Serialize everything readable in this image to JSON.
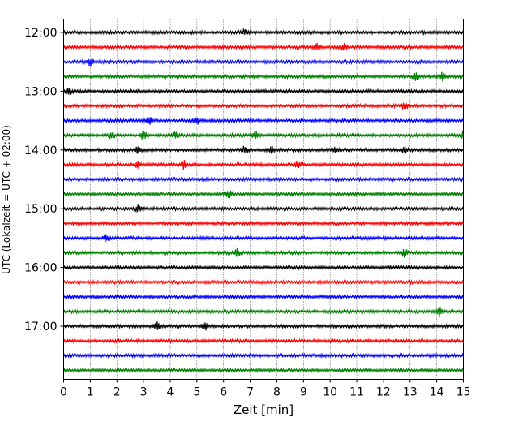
{
  "chart_data": {
    "type": "line",
    "title": "",
    "xlabel": "Zeit  [min]",
    "ylabel": "UTC (Lokalzeit = UTC + 02:00)",
    "xlim": [
      0,
      15
    ],
    "x_ticks": [
      0,
      1,
      2,
      3,
      4,
      5,
      6,
      7,
      8,
      9,
      10,
      11,
      12,
      13,
      14,
      15
    ],
    "y_tick_labels": [
      "12:00",
      "13:00",
      "14:00",
      "15:00",
      "16:00",
      "17:00"
    ],
    "grid": "vertical dotted",
    "trace_colors": [
      "#000000",
      "#ff0000",
      "#0000ff",
      "#008000"
    ],
    "traces": [
      {
        "start": "12:00",
        "color": "#000000",
        "events": [
          6.8
        ]
      },
      {
        "start": "12:15",
        "color": "#ff0000",
        "events": [
          9.5,
          10.5
        ]
      },
      {
        "start": "12:30",
        "color": "#0000ff",
        "events": [
          1.0
        ]
      },
      {
        "start": "12:45",
        "color": "#008000",
        "events": [
          13.2,
          14.2
        ]
      },
      {
        "start": "13:00",
        "color": "#000000",
        "events": [
          0.2
        ]
      },
      {
        "start": "13:15",
        "color": "#ff0000",
        "events": [
          12.8
        ]
      },
      {
        "start": "13:30",
        "color": "#0000ff",
        "events": [
          3.2,
          5.0
        ]
      },
      {
        "start": "13:45",
        "color": "#008000",
        "events": [
          1.8,
          3.0,
          4.2,
          7.2,
          15.0
        ]
      },
      {
        "start": "14:00",
        "color": "#000000",
        "events": [
          2.8,
          6.8,
          7.8,
          10.2,
          12.8
        ]
      },
      {
        "start": "14:15",
        "color": "#ff0000",
        "events": [
          2.8,
          4.5,
          8.8
        ]
      },
      {
        "start": "14:30",
        "color": "#0000ff",
        "events": []
      },
      {
        "start": "14:45",
        "color": "#008000",
        "events": [
          6.2
        ]
      },
      {
        "start": "15:00",
        "color": "#000000",
        "events": [
          2.8
        ]
      },
      {
        "start": "15:15",
        "color": "#ff0000",
        "events": []
      },
      {
        "start": "15:30",
        "color": "#0000ff",
        "events": [
          1.6
        ]
      },
      {
        "start": "15:45",
        "color": "#008000",
        "events": [
          6.5,
          12.8
        ]
      },
      {
        "start": "16:00",
        "color": "#000000",
        "events": []
      },
      {
        "start": "16:15",
        "color": "#ff0000",
        "events": []
      },
      {
        "start": "16:30",
        "color": "#0000ff",
        "events": []
      },
      {
        "start": "16:45",
        "color": "#008000",
        "events": [
          14.1
        ]
      },
      {
        "start": "17:00",
        "color": "#000000",
        "events": [
          3.5,
          5.3
        ]
      },
      {
        "start": "17:15",
        "color": "#ff0000",
        "events": []
      },
      {
        "start": "17:30",
        "color": "#0000ff",
        "events": []
      },
      {
        "start": "17:45",
        "color": "#008000",
        "events": []
      }
    ]
  }
}
